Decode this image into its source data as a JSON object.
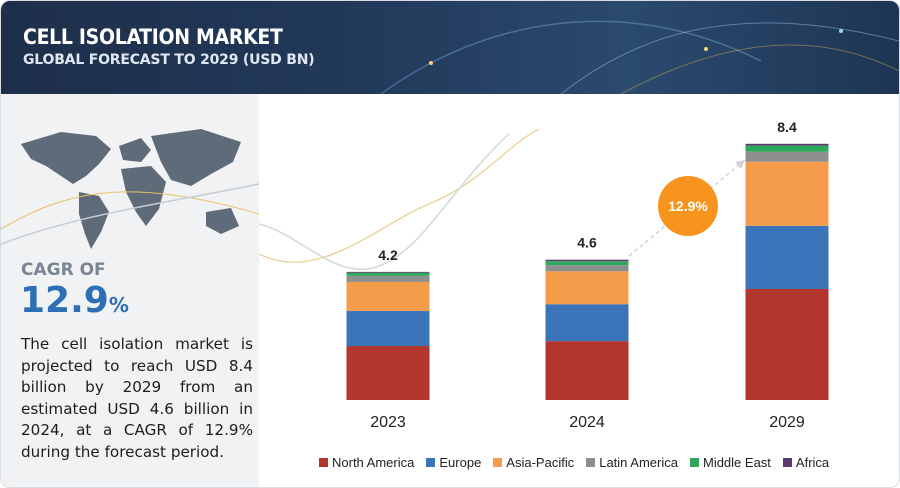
{
  "header": {
    "title": "CELL ISOLATION MARKET",
    "subtitle": "GLOBAL FORECAST TO 2029 (USD BN)"
  },
  "summary": {
    "cagr_label": "CAGR OF",
    "cagr_value": "12.9",
    "cagr_unit": "%",
    "description": "The cell isolation market is projected to reach USD 8.4 billion by 2029 from an estimated USD 4.6 billion in 2024, at a CAGR of 12.9% during the forecast period."
  },
  "chart_data": {
    "type": "stacked_bar",
    "categories": [
      "2023",
      "2024",
      "2029"
    ],
    "totals": [
      4.2,
      4.6,
      8.4
    ],
    "cagr_badge": "12.9%",
    "series": [
      {
        "name": "North America",
        "color": "#b3362e",
        "values": [
          1.77,
          1.93,
          3.64
        ]
      },
      {
        "name": "Europe",
        "color": "#3b74b8",
        "values": [
          1.15,
          1.21,
          2.07
        ]
      },
      {
        "name": "Asia-Pacific",
        "color": "#f59c4a",
        "values": [
          0.95,
          1.08,
          2.1
        ]
      },
      {
        "name": "Latin America",
        "color": "#8e8e8e",
        "values": [
          0.2,
          0.2,
          0.33
        ]
      },
      {
        "name": "Middle East",
        "color": "#2ea85a",
        "values": [
          0.1,
          0.13,
          0.2
        ]
      },
      {
        "name": "Africa",
        "color": "#5a3b6d",
        "values": [
          0.03,
          0.05,
          0.06
        ]
      }
    ],
    "legend": "bottom"
  }
}
